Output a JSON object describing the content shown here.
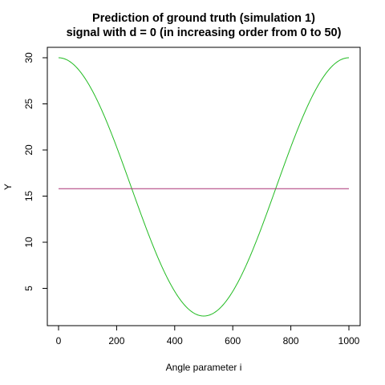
{
  "chart_data": {
    "type": "line",
    "title_line1": "Prediction of ground truth (simulation 1)",
    "title_line2": "signal with d = 0  (in increasing order from 0 to 50)",
    "xlabel": "Angle parameter i",
    "ylabel": "Y",
    "xlim": [
      0,
      1000
    ],
    "ylim": [
      2,
      30
    ],
    "x_ticks": [
      0,
      200,
      400,
      600,
      800,
      1000
    ],
    "y_ticks": [
      5,
      10,
      15,
      20,
      25,
      30
    ],
    "grid": false,
    "series": [
      {
        "color": "#22bb22",
        "shape": "cosine",
        "x_range": [
          0,
          1000
        ],
        "max_value": 30,
        "min_value": 2,
        "min_at_x": 500
      },
      {
        "color": "#aa3377",
        "shape": "constant",
        "x_range": [
          0,
          1000
        ],
        "value": 15.8
      }
    ]
  }
}
